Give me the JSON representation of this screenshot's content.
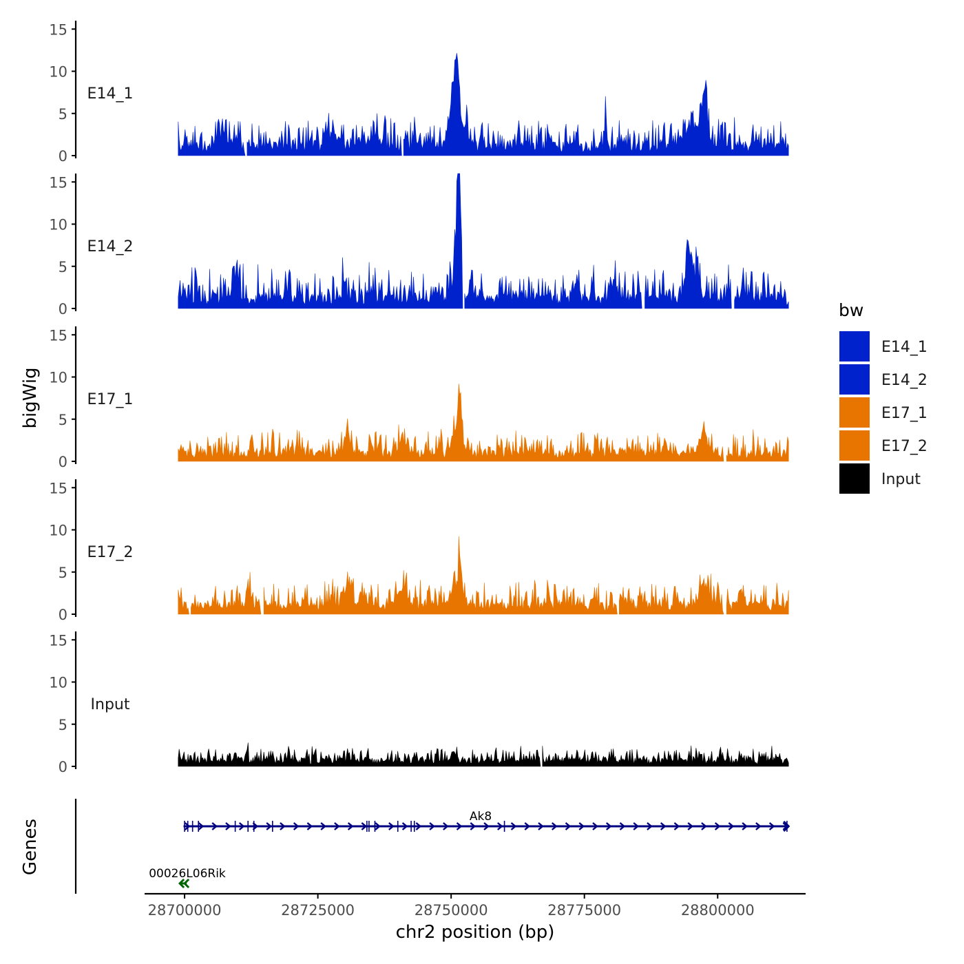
{
  "chart_data": {
    "type": "area",
    "title": "",
    "xlabel": "chr2 position (bp)",
    "ylabel": "bigWig",
    "genes_label": "Genes",
    "xlim": [
      28692500,
      28816500
    ],
    "track_xrange": [
      28698800,
      28813300
    ],
    "ylim": [
      0,
      16
    ],
    "x_ticks": [
      28700000,
      28725000,
      28750000,
      28775000,
      28800000
    ],
    "x_tick_labels": [
      "28700000",
      "28725000",
      "28750000",
      "28775000",
      "28800000"
    ],
    "y_ticks": [
      0,
      5,
      10,
      15
    ],
    "y_tick_labels": [
      "0",
      "5",
      "10",
      "15"
    ],
    "legend": {
      "title": "bw",
      "position": "right",
      "items": [
        {
          "label": "E14_1",
          "color": "#0022CC"
        },
        {
          "label": "E14_2",
          "color": "#0022CC"
        },
        {
          "label": "E17_1",
          "color": "#E87500"
        },
        {
          "label": "E17_2",
          "color": "#E87500"
        },
        {
          "label": "Input",
          "color": "#000000"
        }
      ]
    },
    "series": [
      {
        "name": "E14_1",
        "color": "#0022CC",
        "base": 1.2,
        "jitter": 1.4,
        "gaps": [
          28711500,
          28740800
        ],
        "peaks": [
          {
            "x": 28750400,
            "h": 5.5,
            "w": 900
          },
          {
            "x": 28751000,
            "h": 4.5,
            "w": 300
          },
          {
            "x": 28751400,
            "h": 4.0,
            "w": 250
          },
          {
            "x": 28752500,
            "h": 2.0,
            "w": 700
          },
          {
            "x": 28779000,
            "h": 4.5,
            "w": 150
          },
          {
            "x": 28795000,
            "h": 2.5,
            "w": 1200
          },
          {
            "x": 28797500,
            "h": 4.5,
            "w": 700
          },
          {
            "x": 28728000,
            "h": 1.5,
            "w": 900
          },
          {
            "x": 28736000,
            "h": 1.4,
            "w": 900
          },
          {
            "x": 28708000,
            "h": 0.8,
            "w": 1500
          }
        ]
      },
      {
        "name": "E14_2",
        "color": "#0022CC",
        "base": 1.3,
        "jitter": 1.8,
        "gaps": [
          28752300,
          28786000,
          28802800
        ],
        "peaks": [
          {
            "x": 28751400,
            "h": 14.0,
            "w": 350
          },
          {
            "x": 28751000,
            "h": 5.0,
            "w": 600
          },
          {
            "x": 28794400,
            "h": 6.5,
            "w": 300
          },
          {
            "x": 28795500,
            "h": 3.0,
            "w": 900
          },
          {
            "x": 28730000,
            "h": 2.5,
            "w": 300
          },
          {
            "x": 28709500,
            "h": 2.5,
            "w": 400
          },
          {
            "x": 28780500,
            "h": 2.5,
            "w": 500
          }
        ]
      },
      {
        "name": "E17_1",
        "color": "#E87500",
        "base": 1.0,
        "jitter": 1.2,
        "gaps": [
          28801300
        ],
        "peaks": [
          {
            "x": 28751700,
            "h": 6.0,
            "w": 300
          },
          {
            "x": 28751000,
            "h": 2.0,
            "w": 900
          },
          {
            "x": 28730500,
            "h": 2.0,
            "w": 700
          },
          {
            "x": 28741000,
            "h": 1.8,
            "w": 700
          },
          {
            "x": 28797500,
            "h": 2.0,
            "w": 900
          }
        ]
      },
      {
        "name": "E17_2",
        "color": "#E87500",
        "base": 1.1,
        "jitter": 1.3,
        "gaps": [
          28700900,
          28714500,
          28781300,
          28801300
        ],
        "peaks": [
          {
            "x": 28751700,
            "h": 5.5,
            "w": 300
          },
          {
            "x": 28751000,
            "h": 2.0,
            "w": 900
          },
          {
            "x": 28730500,
            "h": 2.5,
            "w": 700
          },
          {
            "x": 28741000,
            "h": 2.2,
            "w": 800
          },
          {
            "x": 28797500,
            "h": 2.5,
            "w": 1000
          },
          {
            "x": 28804500,
            "h": 2.0,
            "w": 500
          },
          {
            "x": 28712000,
            "h": 1.5,
            "w": 300
          }
        ]
      },
      {
        "name": "Input",
        "color": "#000000",
        "base": 0.8,
        "jitter": 0.7,
        "gaps": [
          28766800
        ],
        "peaks": [
          {
            "x": 28711700,
            "h": 1.5,
            "w": 200
          },
          {
            "x": 28767000,
            "h": 1.5,
            "w": 200
          },
          {
            "x": 28750500,
            "h": 1.0,
            "w": 300
          }
        ]
      }
    ],
    "genes": [
      {
        "name": "Ak8",
        "strand": "+",
        "color": "#000080",
        "start": 28699800,
        "end": 28813300,
        "exons": [
          28700000,
          28700600,
          28701500,
          28702600,
          28709500,
          28711900,
          28713000,
          28716500,
          28734200,
          28734600,
          28735700,
          28740000,
          28742500,
          28743100,
          28760000,
          28813000
        ]
      },
      {
        "name": "00026L06Rik",
        "strand": "-",
        "color": "#006400",
        "start": 28699100,
        "end": 28700400,
        "exons": []
      }
    ]
  }
}
